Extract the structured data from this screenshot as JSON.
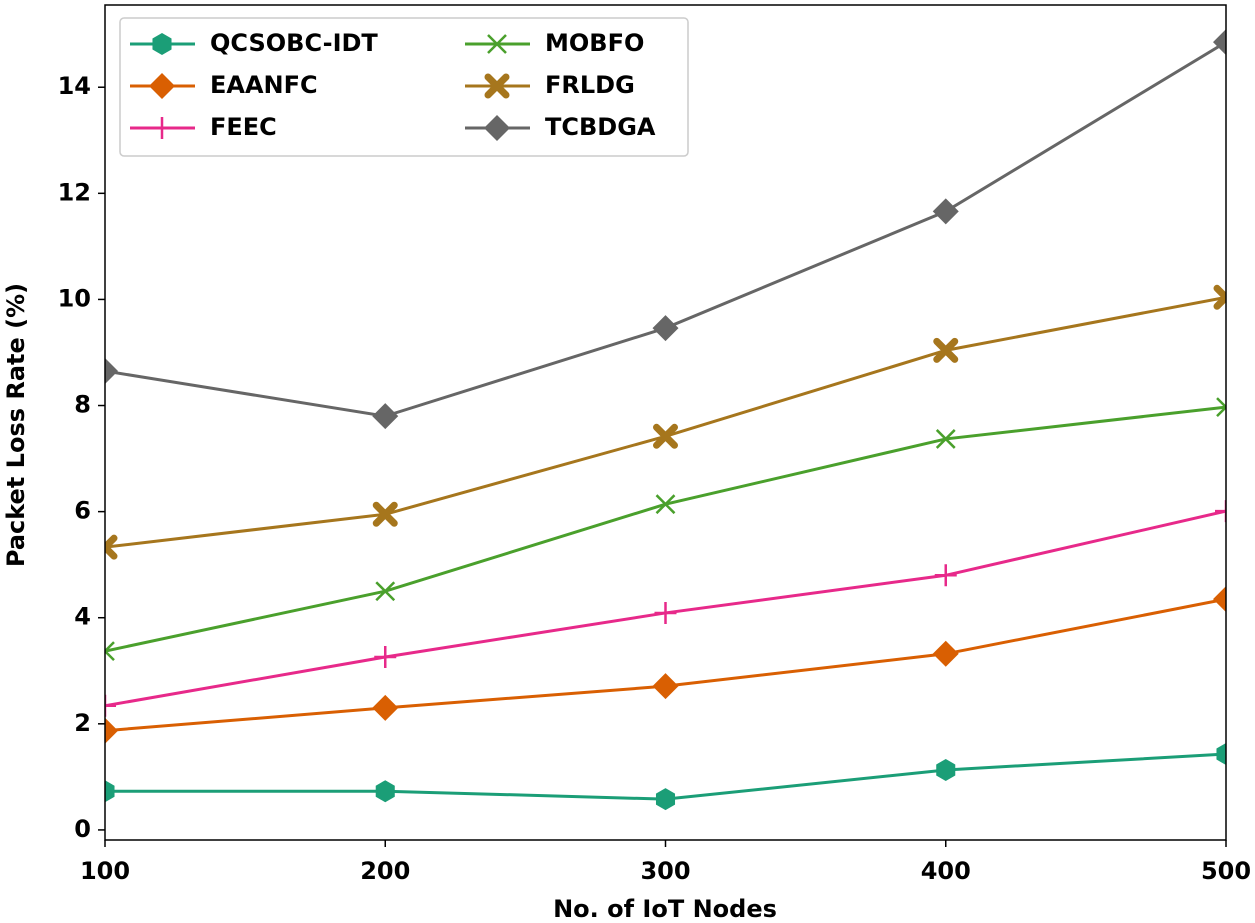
{
  "chart_data": {
    "type": "line",
    "xlabel": "No. of IoT Nodes",
    "ylabel": "Packet Loss Rate (%)",
    "x": [
      100,
      200,
      300,
      400,
      500
    ],
    "xlim": [
      100,
      500
    ],
    "xticks": [
      100,
      200,
      300,
      400,
      500
    ],
    "ylim": [
      -0.19,
      15.55
    ],
    "yticks": [
      0,
      2,
      4,
      6,
      8,
      10,
      12,
      14
    ],
    "legend": "upper left",
    "series": [
      {
        "name": "QCSOBC-IDT",
        "color": "#1b9e77",
        "marker": "hexagon",
        "values": [
          0.73,
          0.73,
          0.58,
          1.13,
          1.43
        ]
      },
      {
        "name": "EAANFC",
        "color": "#d95f02",
        "marker": "diamond",
        "values": [
          1.87,
          2.3,
          2.71,
          3.32,
          4.35
        ]
      },
      {
        "name": "FEEC",
        "color": "#e7298a",
        "marker": "plus",
        "values": [
          2.34,
          3.26,
          4.09,
          4.8,
          6.01
        ]
      },
      {
        "name": "MOBFO",
        "color": "#4aa02c",
        "marker": "x",
        "values": [
          3.37,
          4.5,
          6.14,
          7.37,
          7.97
        ]
      },
      {
        "name": "FRLDG",
        "color": "#a6761d",
        "marker": "xfilled",
        "values": [
          5.33,
          5.95,
          7.42,
          9.04,
          10.04
        ]
      },
      {
        "name": "TCBDGA",
        "color": "#666666",
        "marker": "diamond",
        "values": [
          8.65,
          7.8,
          9.46,
          11.66,
          14.85
        ]
      }
    ]
  }
}
